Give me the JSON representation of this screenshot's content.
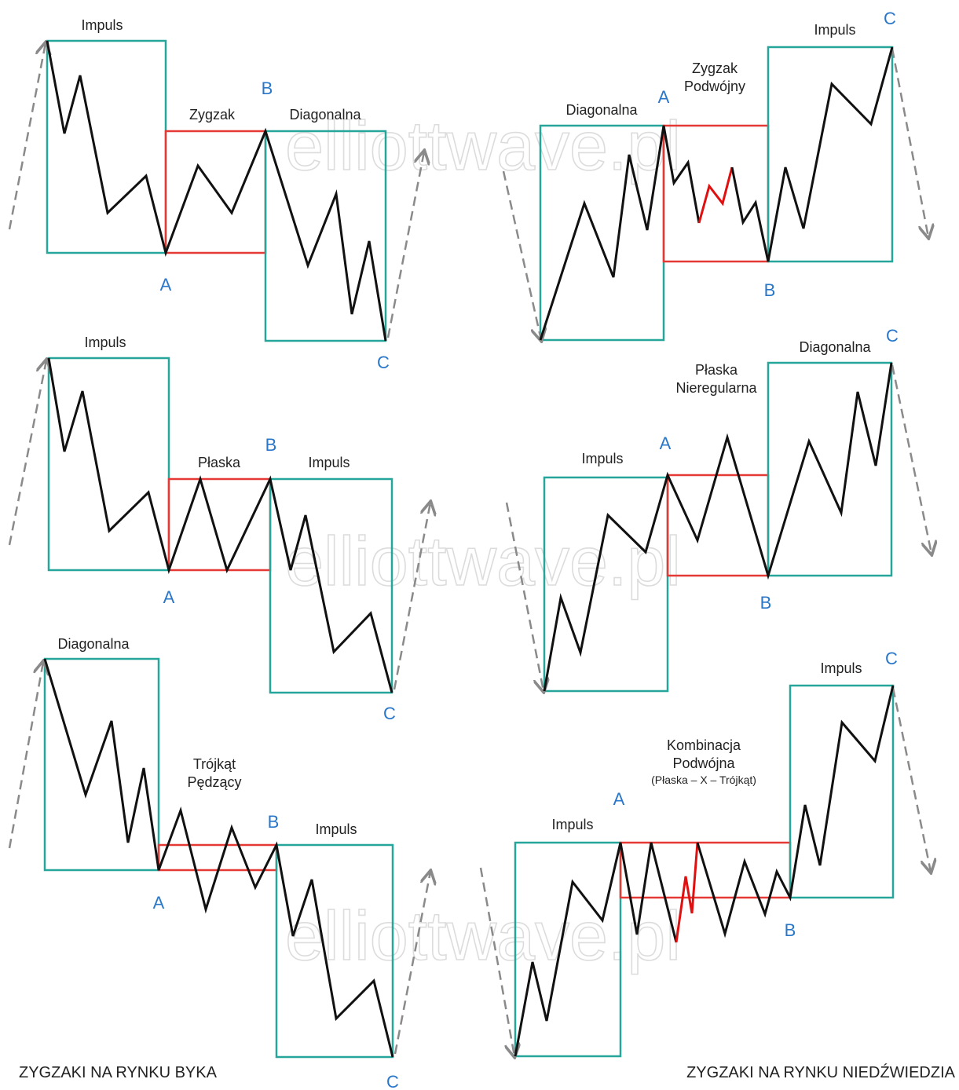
{
  "colors": {
    "box_primary": "#26a69a",
    "box_correction": "#e53935",
    "wave": "#111111",
    "wave_sub": "#e01010",
    "arrow": "#8a8a8a",
    "point_label": "#2a77c9"
  },
  "watermark": "elliottwave.pl",
  "captions": {
    "bull": "ZYGZAKI NA RYNKU BYKA",
    "bear": "ZYGZAKI NA RYNKU NIEDŹWIEDZIA"
  },
  "panels": [
    {
      "id": "bull-1",
      "boxes": [
        {
          "kind": "primary",
          "label": [
            "Impuls"
          ]
        },
        {
          "kind": "correction",
          "label": [
            "Zygzak"
          ]
        },
        {
          "kind": "primary",
          "label": [
            "Diagonalna"
          ]
        }
      ],
      "points": [
        "A",
        "B",
        "C"
      ]
    },
    {
      "id": "bull-2",
      "boxes": [
        {
          "kind": "primary",
          "label": [
            "Impuls"
          ]
        },
        {
          "kind": "correction",
          "label": [
            "Płaska"
          ]
        },
        {
          "kind": "primary",
          "label": [
            "Impuls"
          ]
        }
      ],
      "points": [
        "A",
        "B",
        "C"
      ]
    },
    {
      "id": "bull-3",
      "boxes": [
        {
          "kind": "primary",
          "label": [
            "Diagonalna"
          ]
        },
        {
          "kind": "correction",
          "label": [
            "Trójkąt",
            "Pędzący"
          ]
        },
        {
          "kind": "primary",
          "label": [
            "Impuls"
          ]
        }
      ],
      "points": [
        "A",
        "B",
        "C"
      ]
    },
    {
      "id": "bear-1",
      "boxes": [
        {
          "kind": "primary",
          "label": [
            "Diagonalna"
          ]
        },
        {
          "kind": "correction",
          "label": [
            "Zygzak",
            "Podwójny"
          ]
        },
        {
          "kind": "primary",
          "label": [
            "Impuls"
          ]
        }
      ],
      "points": [
        "A",
        "B",
        "C"
      ]
    },
    {
      "id": "bear-2",
      "boxes": [
        {
          "kind": "primary",
          "label": [
            "Impuls"
          ]
        },
        {
          "kind": "correction",
          "label": [
            "Płaska",
            "Nieregularna"
          ]
        },
        {
          "kind": "primary",
          "label": [
            "Diagonalna"
          ]
        }
      ],
      "points": [
        "A",
        "B",
        "C"
      ]
    },
    {
      "id": "bear-3",
      "boxes": [
        {
          "kind": "primary",
          "label": [
            "Impuls"
          ]
        },
        {
          "kind": "correction",
          "label": [
            "Kombinacja",
            "Podwójna"
          ],
          "sublabel": "(Płaska – X – Trójkąt)"
        },
        {
          "kind": "primary",
          "label": [
            "Impuls"
          ]
        }
      ],
      "points": [
        "A",
        "B",
        "C"
      ]
    }
  ]
}
